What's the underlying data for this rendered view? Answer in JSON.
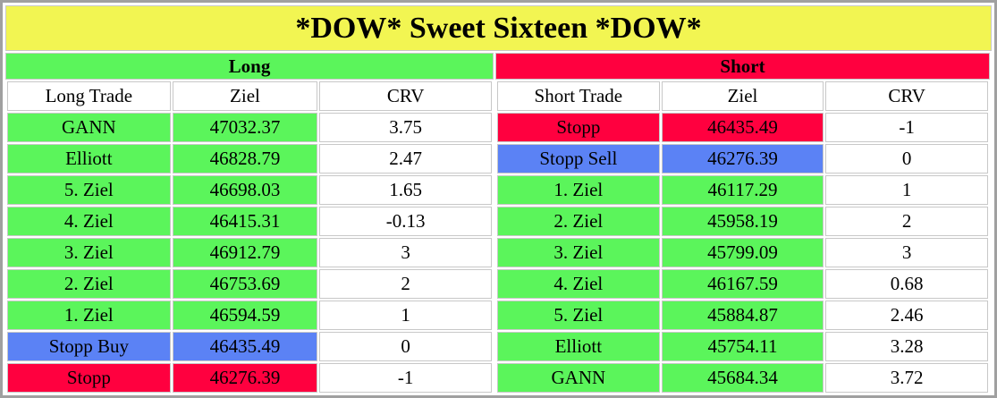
{
  "title": "*DOW* Sweet Sixteen *DOW*",
  "colors": {
    "title_bg": "#f2f552",
    "green": "#5bf55b",
    "red": "#ff003f",
    "blue": "#5b82f5",
    "white": "#ffffff"
  },
  "long": {
    "header": "Long",
    "header_color": "#5bf55b",
    "columns": [
      "Long Trade",
      "Ziel",
      "CRV"
    ],
    "rows": [
      {
        "label": "GANN",
        "ziel": "47032.37",
        "crv": "3.75",
        "color": "green"
      },
      {
        "label": "Elliott",
        "ziel": "46828.79",
        "crv": "2.47",
        "color": "green"
      },
      {
        "label": "5. Ziel",
        "ziel": "46698.03",
        "crv": "1.65",
        "color": "green"
      },
      {
        "label": "4. Ziel",
        "ziel": "46415.31",
        "crv": "-0.13",
        "color": "green"
      },
      {
        "label": "3. Ziel",
        "ziel": "46912.79",
        "crv": "3",
        "color": "green"
      },
      {
        "label": "2. Ziel",
        "ziel": "46753.69",
        "crv": "2",
        "color": "green"
      },
      {
        "label": "1. Ziel",
        "ziel": "46594.59",
        "crv": "1",
        "color": "green"
      },
      {
        "label": "Stopp Buy",
        "ziel": "46435.49",
        "crv": "0",
        "color": "blue"
      },
      {
        "label": "Stopp",
        "ziel": "46276.39",
        "crv": "-1",
        "color": "red"
      }
    ]
  },
  "short": {
    "header": "Short",
    "header_color": "#ff003f",
    "columns": [
      "Short Trade",
      "Ziel",
      "CRV"
    ],
    "rows": [
      {
        "label": "Stopp",
        "ziel": "46435.49",
        "crv": "-1",
        "color": "red"
      },
      {
        "label": "Stopp Sell",
        "ziel": "46276.39",
        "crv": "0",
        "color": "blue"
      },
      {
        "label": "1. Ziel",
        "ziel": "46117.29",
        "crv": "1",
        "color": "green"
      },
      {
        "label": "2. Ziel",
        "ziel": "45958.19",
        "crv": "2",
        "color": "green"
      },
      {
        "label": "3. Ziel",
        "ziel": "45799.09",
        "crv": "3",
        "color": "green"
      },
      {
        "label": "4. Ziel",
        "ziel": "46167.59",
        "crv": "0.68",
        "color": "green"
      },
      {
        "label": "5. Ziel",
        "ziel": "45884.87",
        "crv": "2.46",
        "color": "green"
      },
      {
        "label": "Elliott",
        "ziel": "45754.11",
        "crv": "3.28",
        "color": "green"
      },
      {
        "label": "GANN",
        "ziel": "45684.34",
        "crv": "3.72",
        "color": "green"
      }
    ]
  }
}
